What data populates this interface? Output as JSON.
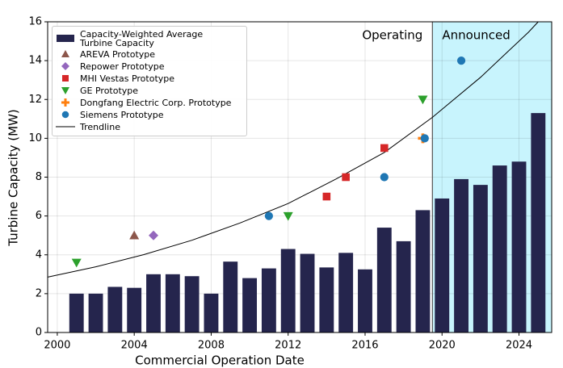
{
  "chart_data": {
    "type": "bar",
    "xlabel": "Commercial Operation Date",
    "ylabel": "Turbine Capacity (MW)",
    "xlim": [
      1999.5,
      2025.7
    ],
    "ylim": [
      0,
      16
    ],
    "xticks": [
      2000,
      2004,
      2008,
      2012,
      2016,
      2020,
      2024
    ],
    "yticks": [
      0,
      2,
      4,
      6,
      8,
      10,
      12,
      14,
      16
    ],
    "grid": true,
    "legend": "upper left",
    "shaded_region": {
      "x": 2019.5,
      "color": "#c8f4fd"
    },
    "annotations": [
      "Operating",
      "Announced"
    ],
    "series": [
      {
        "name": "Capacity-Weighted Average\nTurbine Capacity",
        "type": "bar",
        "color": "#25254d",
        "x": [
          2001,
          2002,
          2003,
          2004,
          2005,
          2006,
          2007,
          2008,
          2009,
          2010,
          2011,
          2012,
          2013,
          2014,
          2015,
          2016,
          2017,
          2018,
          2019,
          2020,
          2021,
          2022,
          2023,
          2024,
          2025
        ],
        "values": [
          2.0,
          2.0,
          2.35,
          2.3,
          3.0,
          3.0,
          2.9,
          2.0,
          3.65,
          2.8,
          3.3,
          4.3,
          4.05,
          3.35,
          4.1,
          3.25,
          5.4,
          4.7,
          6.3,
          6.9,
          7.9,
          7.6,
          8.6,
          8.8,
          11.3
        ]
      },
      {
        "name": "AREVA Prototype",
        "type": "scatter",
        "marker": "triangle-up",
        "color": "#8c564b",
        "x": [
          2004
        ],
        "values": [
          5.0
        ]
      },
      {
        "name": "Repower Prototype",
        "type": "scatter",
        "marker": "diamond",
        "color": "#9467bd",
        "x": [
          2005
        ],
        "values": [
          5.0
        ]
      },
      {
        "name": "MHI Vestas Prototype",
        "type": "scatter",
        "marker": "square",
        "color": "#d62728",
        "x": [
          2014,
          2015,
          2017
        ],
        "values": [
          7.0,
          8.0,
          9.5
        ]
      },
      {
        "name": "GE Prototype",
        "type": "scatter",
        "marker": "triangle-down",
        "color": "#2ca02c",
        "x": [
          2001,
          2012,
          2019
        ],
        "values": [
          3.6,
          6.0,
          12.0
        ]
      },
      {
        "name": "Dongfang Electric Corp. Prototype",
        "type": "scatter",
        "marker": "plus",
        "color": "#ff7f0e",
        "x": [
          2019
        ],
        "values": [
          10.0
        ]
      },
      {
        "name": "Siemens Prototype",
        "type": "scatter",
        "marker": "circle",
        "color": "#1f77b4",
        "x": [
          2011,
          2017,
          2019.1,
          2021
        ],
        "values": [
          6.0,
          8.0,
          10.0,
          14.0
        ]
      },
      {
        "name": "Trendline",
        "type": "line",
        "color": "#000000",
        "x": [
          1999.5,
          2002,
          2004.5,
          2007,
          2009.5,
          2012,
          2014.5,
          2017,
          2019.5,
          2022,
          2024.5,
          2025
        ],
        "values": [
          2.85,
          3.38,
          4.01,
          4.75,
          5.64,
          6.64,
          7.91,
          9.27,
          11.08,
          13.14,
          15.47,
          16.0
        ]
      }
    ]
  }
}
